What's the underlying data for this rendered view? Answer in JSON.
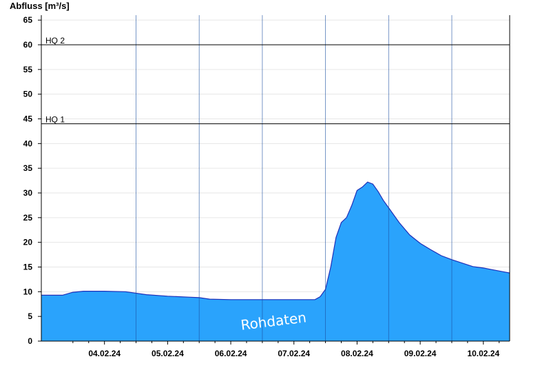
{
  "chart_data": {
    "type": "area",
    "ylabel": "Abfluss [m³/s]",
    "ylim": [
      0,
      66
    ],
    "yticks": [
      0,
      5,
      10,
      15,
      20,
      25,
      30,
      35,
      40,
      45,
      50,
      55,
      60,
      65
    ],
    "xlim": [
      "2024-02-03T12:00",
      "2024-02-10T22:00"
    ],
    "day_boundaries": [
      "2024-02-04T00:00",
      "2024-02-05T00:00",
      "2024-02-06T00:00",
      "2024-02-07T00:00",
      "2024-02-08T00:00",
      "2024-02-09T00:00",
      "2024-02-10T00:00"
    ],
    "xtick_labels": [
      {
        "x": "2024-02-04T00:00",
        "label": "04.02.24"
      },
      {
        "x": "2024-02-05T00:00",
        "label": "05.02.24"
      },
      {
        "x": "2024-02-06T00:00",
        "label": "06.02.24"
      },
      {
        "x": "2024-02-07T00:00",
        "label": "07.02.24"
      },
      {
        "x": "2024-02-08T00:00",
        "label": "08.02.24"
      },
      {
        "x": "2024-02-09T00:00",
        "label": "09.02.24"
      },
      {
        "x": "2024-02-10T00:00",
        "label": "10.02.24"
      }
    ],
    "grid": true,
    "reference_lines": [
      {
        "label": "HQ 2",
        "y": 60
      },
      {
        "label": "HQ 1",
        "y": 44
      }
    ],
    "watermark": "Rohdaten",
    "fill_color": "#2aa3fc",
    "line_color": "#1f2fb8",
    "series": [
      {
        "x": [
          "2024-02-03T12:00",
          "2024-02-03T20:00",
          "2024-02-04T00:00",
          "2024-02-04T04:00",
          "2024-02-04T12:00",
          "2024-02-04T20:00",
          "2024-02-05T04:00",
          "2024-02-05T12:00",
          "2024-02-05T20:00",
          "2024-02-06T00:00",
          "2024-02-06T04:00",
          "2024-02-06T12:00",
          "2024-02-06T20:00",
          "2024-02-07T04:00",
          "2024-02-07T12:00",
          "2024-02-07T20:00",
          "2024-02-07T22:00",
          "2024-02-08T00:00",
          "2024-02-08T02:00",
          "2024-02-08T04:00",
          "2024-02-08T06:00",
          "2024-02-08T08:00",
          "2024-02-08T10:00",
          "2024-02-08T12:00",
          "2024-02-08T14:00",
          "2024-02-08T16:00",
          "2024-02-08T18:00",
          "2024-02-08T20:00",
          "2024-02-08T22:00",
          "2024-02-09T00:00",
          "2024-02-09T04:00",
          "2024-02-09T08:00",
          "2024-02-09T12:00",
          "2024-02-09T16:00",
          "2024-02-09T20:00",
          "2024-02-10T00:00",
          "2024-02-10T04:00",
          "2024-02-10T08:00",
          "2024-02-10T12:00",
          "2024-02-10T16:00",
          "2024-02-10T20:00",
          "2024-02-10T22:00"
        ],
        "values": [
          9.3,
          9.3,
          9.9,
          10.1,
          10.1,
          10.0,
          9.4,
          9.1,
          8.9,
          8.8,
          8.5,
          8.4,
          8.4,
          8.4,
          8.4,
          8.4,
          9.0,
          10.5,
          15.0,
          21.0,
          24.0,
          25.0,
          27.5,
          30.5,
          31.2,
          32.2,
          31.8,
          30.3,
          28.5,
          27.0,
          24.0,
          21.5,
          19.8,
          18.5,
          17.3,
          16.5,
          15.8,
          15.1,
          14.8,
          14.4,
          14.0,
          13.8
        ]
      }
    ]
  }
}
